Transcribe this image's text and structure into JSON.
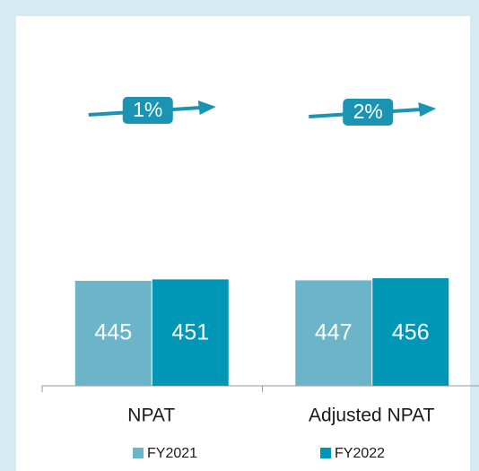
{
  "chart_data": {
    "type": "bar",
    "categories": [
      "NPAT",
      "Adjusted NPAT"
    ],
    "series": [
      {
        "name": "FY2021",
        "color": "#6cb5c9",
        "values": [
          445,
          447
        ]
      },
      {
        "name": "FY2022",
        "color": "#0096b5",
        "values": [
          451,
          456
        ]
      }
    ],
    "annotations": [
      "1%",
      "2%"
    ],
    "annotation_color": "#1b93b2",
    "legend": "bottom"
  }
}
